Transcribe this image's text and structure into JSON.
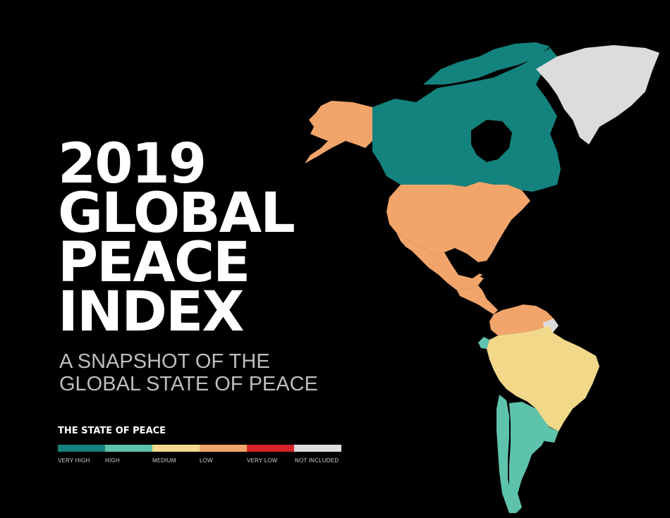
{
  "title": {
    "lines": [
      "2019",
      "GLOBAL",
      "PEACE",
      "INDEX"
    ]
  },
  "subtitle": {
    "lines": [
      "A SNAPSHOT OF THE",
      "GLOBAL STATE OF PEACE"
    ]
  },
  "legend": {
    "title": "THE STATE OF PEACE",
    "items": [
      {
        "label": "VERY HIGH",
        "color": "#14827d"
      },
      {
        "label": "HIGH",
        "color": "#5ec3ad"
      },
      {
        "label": "MEDIUM",
        "color": "#f2d98a"
      },
      {
        "label": "LOW",
        "color": "#f2a56a"
      },
      {
        "label": "VERY LOW",
        "color": "#d9232a"
      },
      {
        "label": "NOT INCLUDED",
        "color": "#dcdcdc"
      }
    ]
  },
  "map": {
    "regions": [
      {
        "name": "Alaska",
        "level": "LOW"
      },
      {
        "name": "Canada",
        "level": "VERY HIGH"
      },
      {
        "name": "Greenland",
        "level": "NOT INCLUDED"
      },
      {
        "name": "United States",
        "level": "LOW"
      },
      {
        "name": "Mexico",
        "level": "LOW"
      },
      {
        "name": "Central America",
        "level": "LOW"
      },
      {
        "name": "Colombia / Venezuela",
        "level": "LOW"
      },
      {
        "name": "Ecuador",
        "level": "HIGH"
      },
      {
        "name": "Brazil / Peru / Bolivia",
        "level": "MEDIUM"
      },
      {
        "name": "Chile",
        "level": "HIGH"
      },
      {
        "name": "Argentina",
        "level": "HIGH"
      },
      {
        "name": "Uruguay",
        "level": "HIGH"
      },
      {
        "name": "French Guiana",
        "level": "NOT INCLUDED"
      }
    ]
  }
}
